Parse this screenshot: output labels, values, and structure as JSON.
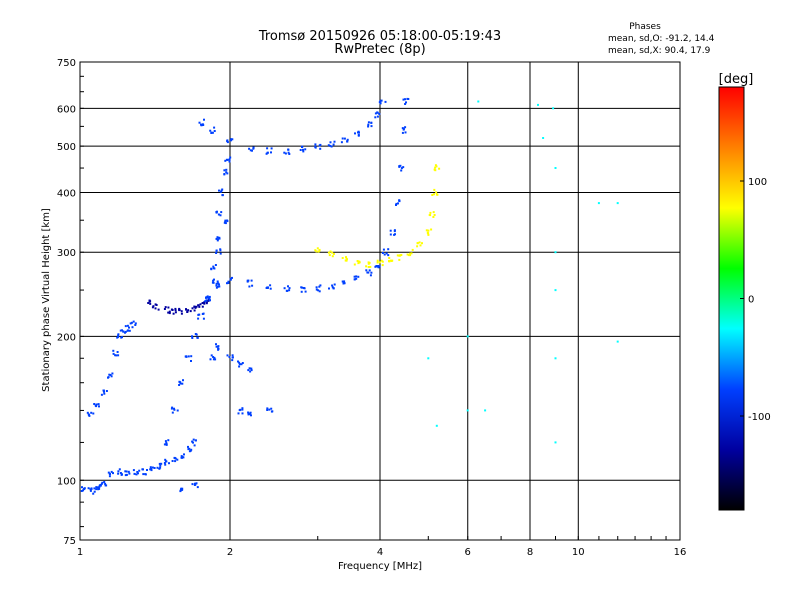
{
  "chart_data": {
    "type": "scatter",
    "title": "Tromsø 20150926 05:18:00-05:19:43",
    "subtitle": "RwPretec (8p)",
    "xlabel": "Frequency [MHz]",
    "ylabel": "Stationary phase Virtual Height [km]",
    "x_scale": "log",
    "y_scale": "log",
    "xlim": [
      1,
      16
    ],
    "ylim": [
      75,
      750
    ],
    "x_ticks": [
      1,
      2,
      4,
      6,
      8,
      10,
      16
    ],
    "x_tick_labels": [
      "1",
      "2",
      "4",
      "6",
      "8",
      "10",
      "16"
    ],
    "y_ticks": [
      75,
      100,
      200,
      300,
      400,
      500,
      600,
      750
    ],
    "y_tick_labels": [
      "75",
      "100",
      "200",
      "300",
      "400",
      "500",
      "600",
      "750"
    ],
    "grid": true,
    "legend": {
      "title": "Phases",
      "lines": [
        "mean, sd,O: -91.2, 14.4",
        "mean, sd,X:  90.4, 17.9"
      ],
      "placement": "top-right"
    },
    "colorbar": {
      "label": "[deg]",
      "range": [
        -180,
        180
      ],
      "ticks": [
        100,
        0,
        -100
      ],
      "tick_labels": [
        "100",
        "0",
        "-100"
      ],
      "colors": [
        "#ff0000",
        "#ff8000",
        "#ffff00",
        "#00ff00",
        "#00ffff",
        "#0040ff",
        "#0000a0",
        "#000000"
      ]
    },
    "series": [
      {
        "trace": "lower_low",
        "phase": -100,
        "points": [
          [
            1.02,
            96
          ],
          [
            1.05,
            95
          ],
          [
            1.08,
            96
          ],
          [
            1.1,
            97
          ],
          [
            1.12,
            98
          ],
          [
            1.15,
            103
          ],
          [
            1.2,
            104
          ],
          [
            1.25,
            104
          ],
          [
            1.3,
            104
          ],
          [
            1.35,
            104
          ],
          [
            1.4,
            105
          ],
          [
            1.45,
            107
          ],
          [
            1.5,
            109
          ],
          [
            1.55,
            111
          ],
          [
            1.6,
            113
          ],
          [
            1.65,
            116
          ],
          [
            1.7,
            120
          ]
        ]
      },
      {
        "trace": "lower_branch",
        "phase": -100,
        "points": [
          [
            1.05,
            138
          ],
          [
            1.08,
            143
          ],
          [
            1.12,
            152
          ],
          [
            1.15,
            165
          ],
          [
            1.18,
            185
          ],
          [
            1.2,
            200
          ],
          [
            1.22,
            205
          ],
          [
            1.25,
            208
          ],
          [
            1.28,
            212
          ]
        ]
      },
      {
        "trace": "E_region",
        "phase": -105,
        "points": [
          [
            1.38,
            235
          ],
          [
            1.42,
            230
          ],
          [
            1.5,
            227
          ],
          [
            1.55,
            226
          ],
          [
            1.6,
            226
          ],
          [
            1.65,
            227
          ],
          [
            1.7,
            229
          ],
          [
            1.75,
            232
          ],
          [
            1.8,
            236
          ]
        ]
      },
      {
        "trace": "F_O_trace",
        "phase": -100,
        "points": [
          [
            1.8,
            240
          ],
          [
            1.9,
            255
          ],
          [
            2.0,
            262
          ],
          [
            2.2,
            258
          ],
          [
            2.4,
            253
          ],
          [
            2.6,
            251
          ],
          [
            2.8,
            251
          ],
          [
            3.0,
            252
          ],
          [
            3.2,
            254
          ],
          [
            3.4,
            258
          ],
          [
            3.6,
            264
          ],
          [
            3.8,
            272
          ],
          [
            3.95,
            282
          ],
          [
            4.1,
            300
          ],
          [
            4.25,
            330
          ],
          [
            4.35,
            380
          ],
          [
            4.42,
            450
          ],
          [
            4.48,
            540
          ],
          [
            4.5,
            620
          ]
        ]
      },
      {
        "trace": "F_X_trace",
        "phase": 100,
        "points": [
          [
            3.0,
            305
          ],
          [
            3.2,
            298
          ],
          [
            3.4,
            290
          ],
          [
            3.6,
            285
          ],
          [
            3.8,
            283
          ],
          [
            4.0,
            284
          ],
          [
            4.2,
            288
          ],
          [
            4.4,
            293
          ],
          [
            4.6,
            300
          ],
          [
            4.8,
            312
          ],
          [
            5.0,
            330
          ],
          [
            5.1,
            360
          ],
          [
            5.15,
            400
          ],
          [
            5.2,
            450
          ]
        ]
      },
      {
        "trace": "F2_multi_hop",
        "phase": -100,
        "points": [
          [
            1.75,
            560
          ],
          [
            1.85,
            540
          ],
          [
            2.0,
            510
          ],
          [
            2.2,
            495
          ],
          [
            2.4,
            488
          ],
          [
            2.6,
            488
          ],
          [
            2.8,
            492
          ],
          [
            3.0,
            498
          ],
          [
            3.2,
            505
          ],
          [
            3.4,
            515
          ],
          [
            3.6,
            530
          ],
          [
            3.8,
            555
          ],
          [
            3.95,
            580
          ],
          [
            4.05,
            615
          ]
        ]
      },
      {
        "trace": "spread_column",
        "phase": -100,
        "points": [
          [
            1.85,
            280
          ],
          [
            1.88,
            320
          ],
          [
            1.9,
            360
          ],
          [
            1.92,
            400
          ],
          [
            1.95,
            440
          ],
          [
            1.98,
            470
          ],
          [
            1.9,
            300
          ],
          [
            1.95,
            350
          ],
          [
            1.87,
            260
          ]
        ]
      },
      {
        "trace": "scatter_low",
        "phase": -100,
        "points": [
          [
            1.5,
            120
          ],
          [
            1.55,
            140
          ],
          [
            1.6,
            160
          ],
          [
            1.65,
            180
          ],
          [
            1.7,
            200
          ],
          [
            1.75,
            220
          ],
          [
            1.8,
            240
          ],
          [
            1.85,
            180
          ],
          [
            1.9,
            190
          ],
          [
            2.0,
            180
          ],
          [
            2.1,
            175
          ],
          [
            2.2,
            170
          ],
          [
            2.1,
            140
          ],
          [
            2.2,
            138
          ],
          [
            2.4,
            140
          ],
          [
            1.6,
            95
          ],
          [
            1.7,
            98
          ]
        ]
      },
      {
        "trace": "sparse_noise",
        "phase": 0,
        "points": [
          [
            6.0,
            200
          ],
          [
            6.0,
            140
          ],
          [
            6.3,
            620
          ],
          [
            6.5,
            140
          ],
          [
            8.3,
            610
          ],
          [
            8.5,
            520
          ],
          [
            8.9,
            600
          ],
          [
            9.0,
            450
          ],
          [
            9.0,
            300
          ],
          [
            9.0,
            250
          ],
          [
            9.0,
            180
          ],
          [
            9.0,
            120
          ],
          [
            11.0,
            380
          ],
          [
            12.0,
            380
          ],
          [
            12.0,
            195
          ],
          [
            5.0,
            180
          ],
          [
            5.2,
            130
          ]
        ]
      }
    ]
  }
}
